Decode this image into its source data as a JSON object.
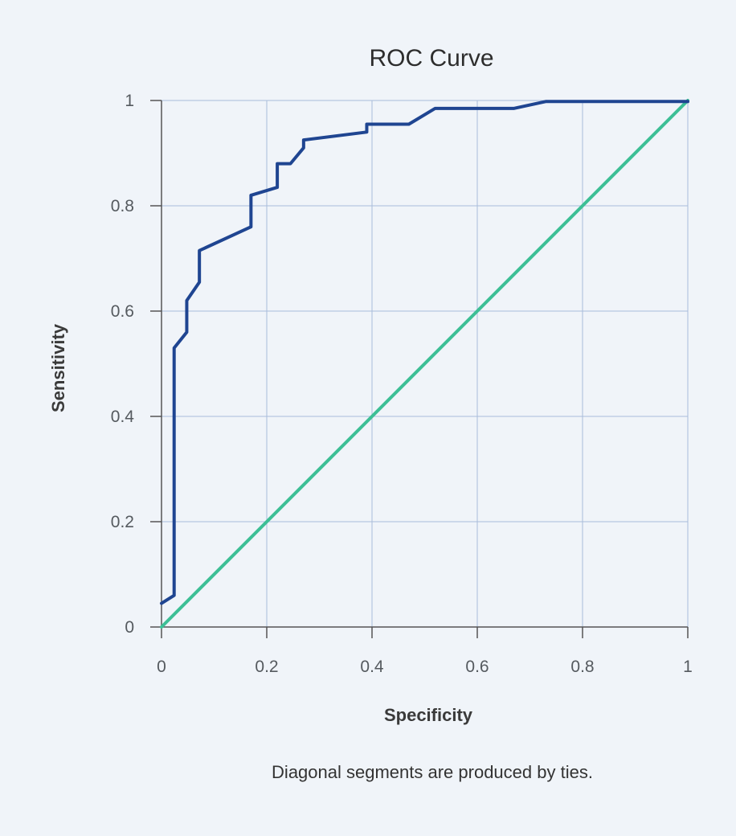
{
  "chart_data": {
    "type": "line",
    "title": "ROC Curve",
    "xlabel": "Specificity",
    "ylabel": "Sensitivity",
    "xlim": [
      0,
      1
    ],
    "ylim": [
      0,
      1
    ],
    "grid": true,
    "x_ticks": [
      "0",
      "0.2",
      "0.4",
      "0.6",
      "0.8",
      "1"
    ],
    "y_ticks": [
      "0",
      "0.2",
      "0.4",
      "0.6",
      "0.8",
      "1"
    ],
    "note": "Diagonal segments are produced by ties.",
    "series": [
      {
        "color": "#1f4591",
        "x": [
          0,
          0.024,
          0.024,
          0.048,
          0.048,
          0.072,
          0.072,
          0.17,
          0.17,
          0.22,
          0.22,
          0.245,
          0.27,
          0.27,
          0.39,
          0.39,
          0.47,
          0.52,
          0.67,
          0.73,
          1
        ],
        "y": [
          0.045,
          0.06,
          0.53,
          0.56,
          0.62,
          0.655,
          0.715,
          0.76,
          0.82,
          0.835,
          0.88,
          0.88,
          0.91,
          0.925,
          0.94,
          0.955,
          0.955,
          0.985,
          0.985,
          0.998,
          0.998
        ]
      },
      {
        "color": "#3dbf96",
        "x": [
          0,
          1
        ],
        "y": [
          0,
          1
        ]
      }
    ]
  }
}
